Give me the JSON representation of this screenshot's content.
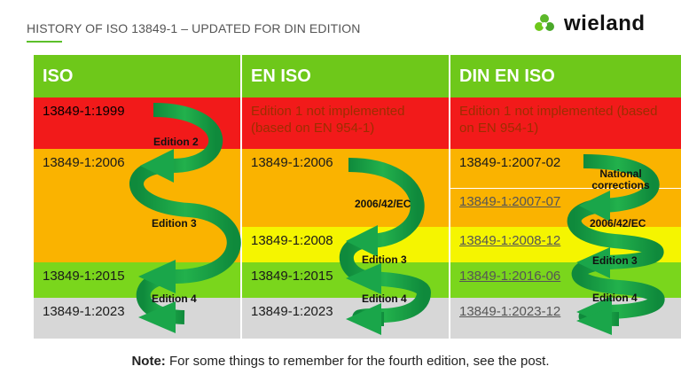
{
  "header": {
    "title": "HISTORY OF ISO 13849-1 – UPDATED FOR DIN EDITION",
    "logo_text": "wieland",
    "logo_icon": "wieland-flower-icon"
  },
  "table": {
    "columns": [
      "ISO",
      "EN ISO",
      "DIN EN ISO"
    ],
    "iso": [
      "13849-1:1999",
      "13849-1:2006",
      "13849-1:2015",
      "13849-1:2023"
    ],
    "en_iso": [
      "Edition 1 not implemented (based on EN 954-1)",
      "13849-1:2006",
      "13849-1:2008",
      "13849-1:2015",
      "13849-1:2023"
    ],
    "din_en_iso": [
      "Edition 1 not implemented (based on EN 954-1)",
      "13849-1:2007-02",
      "13849-1:2007-07",
      "13849-1:2008-12",
      "13849-1:2016-06",
      "13849-1:2023-12"
    ]
  },
  "arrows": {
    "iso": [
      "Edition 2",
      "Edition 3",
      "Edition 4"
    ],
    "en_iso": [
      "2006/42/EC",
      "Edition 3",
      "Edition 4"
    ],
    "din_en_iso": [
      "National corrections",
      "2006/42/EC",
      "Edition 3",
      "Edition 4"
    ]
  },
  "colors": {
    "header_green": "#6ec81a",
    "red": "#f21a1a",
    "orange": "#fab300",
    "yellow": "#f5f500",
    "green": "#7ad61c",
    "grey": "#d7d7d7",
    "arrow": "#1aa64a"
  },
  "note": {
    "bold": "Note:",
    "text": " For some things to remember for the fourth edition, see the post."
  }
}
